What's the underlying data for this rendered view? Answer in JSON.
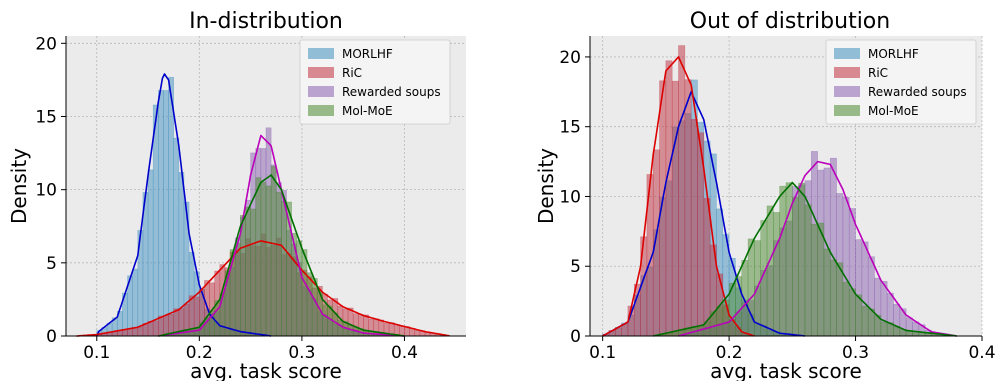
{
  "chart_data": [
    {
      "type": "histogram",
      "title": "In-distribution",
      "xlabel": "avg. task score",
      "ylabel": "Density",
      "xlim": [
        0.07,
        0.46
      ],
      "ylim": [
        0,
        20.5
      ],
      "xticks": [
        "0.1",
        "0.2",
        "0.3",
        "0.4"
      ],
      "yticks": [
        "0",
        "5",
        "10",
        "15",
        "20"
      ],
      "grid": true,
      "legend_position": "top-right",
      "series": [
        {
          "name": "MORLHF",
          "color": "#3f8fc0",
          "line_color": "#0000cc",
          "kde_x": [
            0.1,
            0.12,
            0.14,
            0.15,
            0.16,
            0.165,
            0.17,
            0.18,
            0.19,
            0.2,
            0.21,
            0.22,
            0.24,
            0.27
          ],
          "kde_y": [
            0.2,
            1.3,
            5.5,
            11,
            16,
            18,
            17.5,
            13,
            7,
            3.5,
            1.5,
            0.7,
            0.3,
            0
          ]
        },
        {
          "name": "RiC",
          "color": "#c03040",
          "line_color": "#dd0000",
          "kde_x": [
            0.08,
            0.1,
            0.14,
            0.18,
            0.2,
            0.22,
            0.24,
            0.26,
            0.28,
            0.3,
            0.32,
            0.34,
            0.36,
            0.38,
            0.42,
            0.445
          ],
          "kde_y": [
            0,
            0.1,
            0.6,
            1.8,
            3,
            4.5,
            6,
            6.5,
            6.2,
            4.5,
            3,
            2,
            1.4,
            1,
            0.3,
            0
          ]
        },
        {
          "name": "Rewarded soups",
          "color": "#8a60b0",
          "line_color": "#bb00bb",
          "kde_x": [
            0.16,
            0.2,
            0.22,
            0.24,
            0.25,
            0.26,
            0.27,
            0.28,
            0.3,
            0.32,
            0.34,
            0.36,
            0.4
          ],
          "kde_y": [
            0,
            0.4,
            2,
            7,
            11,
            13.7,
            13,
            10,
            4,
            1.5,
            0.6,
            0.2,
            0
          ]
        },
        {
          "name": "Mol-MoE",
          "color": "#4a8a30",
          "line_color": "#007000",
          "kde_x": [
            0.16,
            0.2,
            0.22,
            0.24,
            0.26,
            0.27,
            0.28,
            0.3,
            0.32,
            0.34,
            0.36,
            0.4
          ],
          "kde_y": [
            0,
            0.6,
            2.5,
            7.5,
            10.5,
            11,
            10,
            6,
            2.5,
            1,
            0.4,
            0
          ]
        }
      ]
    },
    {
      "type": "histogram",
      "title": "Out of distribution",
      "xlabel": "avg. task score",
      "ylabel": "Density",
      "xlim": [
        0.09,
        0.4
      ],
      "ylim": [
        0,
        21.5
      ],
      "xticks": [
        "0.1",
        "0.2",
        "0.3",
        "0.4"
      ],
      "yticks": [
        "0",
        "5",
        "10",
        "15",
        "20"
      ],
      "grid": true,
      "legend_position": "top-right",
      "series": [
        {
          "name": "MORLHF",
          "color": "#3f8fc0",
          "line_color": "#0000cc",
          "kde_x": [
            0.1,
            0.12,
            0.14,
            0.15,
            0.16,
            0.17,
            0.18,
            0.19,
            0.2,
            0.21,
            0.22,
            0.24,
            0.26
          ],
          "kde_y": [
            0,
            1,
            6,
            11,
            15,
            17.5,
            15.5,
            11,
            6,
            3,
            1,
            0.2,
            0
          ]
        },
        {
          "name": "RiC",
          "color": "#c03040",
          "line_color": "#dd0000",
          "kde_x": [
            0.1,
            0.12,
            0.13,
            0.14,
            0.15,
            0.16,
            0.17,
            0.18,
            0.19,
            0.2,
            0.21,
            0.22
          ],
          "kde_y": [
            0,
            1,
            5,
            13,
            19,
            20,
            18,
            12,
            5,
            1.5,
            0.3,
            0
          ]
        },
        {
          "name": "Rewarded soups",
          "color": "#8a60b0",
          "line_color": "#bb00bb",
          "kde_x": [
            0.16,
            0.2,
            0.22,
            0.24,
            0.25,
            0.26,
            0.27,
            0.28,
            0.29,
            0.3,
            0.32,
            0.34,
            0.36,
            0.38
          ],
          "kde_y": [
            0,
            1,
            3,
            7,
            9.5,
            11.5,
            12.5,
            12.3,
            10.5,
            8,
            4,
            1.5,
            0.3,
            0
          ]
        },
        {
          "name": "Mol-MoE",
          "color": "#4a8a30",
          "line_color": "#007000",
          "kde_x": [
            0.14,
            0.18,
            0.2,
            0.22,
            0.24,
            0.25,
            0.26,
            0.28,
            0.3,
            0.32,
            0.34,
            0.38
          ],
          "kde_y": [
            0,
            0.8,
            3,
            7,
            10,
            11,
            10,
            6,
            3,
            1.2,
            0.4,
            0
          ]
        }
      ]
    }
  ]
}
